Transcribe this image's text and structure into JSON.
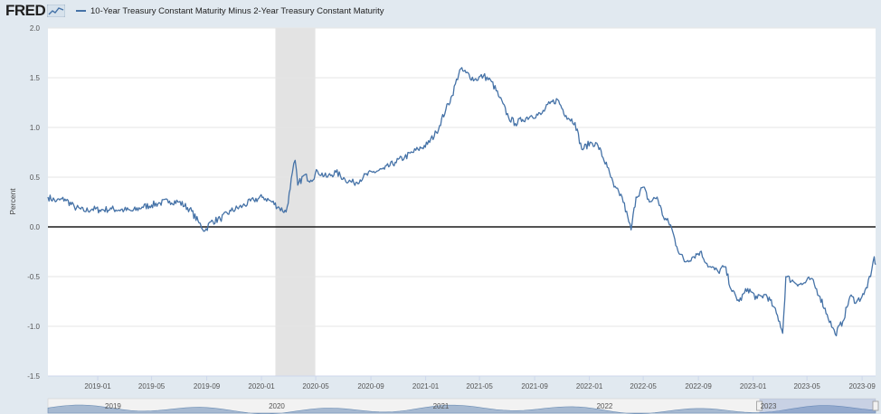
{
  "header": {
    "logo_text": "FRED",
    "legend_label": "10-Year Treasury Constant Maturity Minus 2-Year Treasury Constant Maturity"
  },
  "colors": {
    "series": "#4572a7",
    "recession": "#e3e3e3",
    "zero_line": "#1a1a1a"
  },
  "chart_data": {
    "type": "line",
    "title": "",
    "xlabel": "",
    "ylabel": "Percent",
    "ylim": [
      -1.5,
      2.0
    ],
    "xlim": [
      "2018-09-12",
      "2023-10-01"
    ],
    "yticks": [
      -1.5,
      -1.0,
      -0.5,
      0.0,
      0.5,
      1.0,
      1.5,
      2.0
    ],
    "ytick_labels": [
      "-1.5",
      "-1.0",
      "-0.5",
      "0.0",
      "0.5",
      "1.0",
      "1.5",
      "2.0"
    ],
    "xticks": [
      "2019-01",
      "2019-05",
      "2019-09",
      "2020-01",
      "2020-05",
      "2020-09",
      "2021-01",
      "2021-05",
      "2021-09",
      "2022-01",
      "2022-05",
      "2022-09",
      "2023-01",
      "2023-05",
      "2023-09"
    ],
    "recession": [
      "2020-02-01",
      "2020-04-30"
    ],
    "zero_line": 0,
    "series": [
      {
        "name": "10-Year Treasury Constant Maturity Minus 2-Year Treasury Constant Maturity",
        "points": [
          [
            "2018-09-12",
            0.3
          ],
          [
            "2018-10-01",
            0.26
          ],
          [
            "2018-10-20",
            0.28
          ],
          [
            "2018-11-10",
            0.2
          ],
          [
            "2018-12-01",
            0.16
          ],
          [
            "2018-12-20",
            0.18
          ],
          [
            "2019-01-05",
            0.17
          ],
          [
            "2019-02-01",
            0.18
          ],
          [
            "2019-03-01",
            0.17
          ],
          [
            "2019-03-20",
            0.16
          ],
          [
            "2019-04-10",
            0.2
          ],
          [
            "2019-05-01",
            0.22
          ],
          [
            "2019-05-20",
            0.24
          ],
          [
            "2019-06-10",
            0.26
          ],
          [
            "2019-07-01",
            0.25
          ],
          [
            "2019-07-25",
            0.18
          ],
          [
            "2019-08-15",
            0.04
          ],
          [
            "2019-08-28",
            -0.04
          ],
          [
            "2019-09-10",
            0.05
          ],
          [
            "2019-10-01",
            0.08
          ],
          [
            "2019-10-25",
            0.16
          ],
          [
            "2019-11-20",
            0.21
          ],
          [
            "2019-12-15",
            0.27
          ],
          [
            "2020-01-05",
            0.3
          ],
          [
            "2020-01-25",
            0.25
          ],
          [
            "2020-02-10",
            0.19
          ],
          [
            "2020-02-25",
            0.15
          ],
          [
            "2020-03-05",
            0.38
          ],
          [
            "2020-03-10",
            0.55
          ],
          [
            "2020-03-16",
            0.67
          ],
          [
            "2020-03-22",
            0.42
          ],
          [
            "2020-04-05",
            0.52
          ],
          [
            "2020-04-20",
            0.47
          ],
          [
            "2020-05-05",
            0.56
          ],
          [
            "2020-05-25",
            0.5
          ],
          [
            "2020-06-15",
            0.55
          ],
          [
            "2020-07-05",
            0.48
          ],
          [
            "2020-07-25",
            0.44
          ],
          [
            "2020-08-15",
            0.5
          ],
          [
            "2020-09-05",
            0.55
          ],
          [
            "2020-10-01",
            0.58
          ],
          [
            "2020-10-25",
            0.65
          ],
          [
            "2020-11-15",
            0.7
          ],
          [
            "2020-12-15",
            0.78
          ],
          [
            "2021-01-05",
            0.83
          ],
          [
            "2021-01-25",
            0.95
          ],
          [
            "2021-02-15",
            1.18
          ],
          [
            "2021-03-01",
            1.32
          ],
          [
            "2021-03-18",
            1.58
          ],
          [
            "2021-04-01",
            1.55
          ],
          [
            "2021-04-20",
            1.48
          ],
          [
            "2021-05-10",
            1.52
          ],
          [
            "2021-05-28",
            1.46
          ],
          [
            "2021-06-15",
            1.3
          ],
          [
            "2021-07-05",
            1.1
          ],
          [
            "2021-07-20",
            1.04
          ],
          [
            "2021-08-05",
            1.08
          ],
          [
            "2021-08-25",
            1.12
          ],
          [
            "2021-09-15",
            1.13
          ],
          [
            "2021-10-05",
            1.24
          ],
          [
            "2021-10-22",
            1.28
          ],
          [
            "2021-11-10",
            1.12
          ],
          [
            "2021-11-30",
            1.05
          ],
          [
            "2021-12-15",
            0.78
          ],
          [
            "2022-01-05",
            0.85
          ],
          [
            "2022-01-20",
            0.82
          ],
          [
            "2022-02-10",
            0.6
          ],
          [
            "2022-02-25",
            0.4
          ],
          [
            "2022-03-15",
            0.3
          ],
          [
            "2022-03-30",
            0.05
          ],
          [
            "2022-04-04",
            -0.03
          ],
          [
            "2022-04-15",
            0.3
          ],
          [
            "2022-05-01",
            0.4
          ],
          [
            "2022-05-15",
            0.25
          ],
          [
            "2022-06-01",
            0.3
          ],
          [
            "2022-06-15",
            0.1
          ],
          [
            "2022-07-01",
            0.02
          ],
          [
            "2022-07-15",
            -0.2
          ],
          [
            "2022-08-01",
            -0.35
          ],
          [
            "2022-08-20",
            -0.3
          ],
          [
            "2022-09-05",
            -0.25
          ],
          [
            "2022-09-25",
            -0.4
          ],
          [
            "2022-10-15",
            -0.45
          ],
          [
            "2022-10-30",
            -0.4
          ],
          [
            "2022-11-15",
            -0.65
          ],
          [
            "2022-12-01",
            -0.75
          ],
          [
            "2022-12-20",
            -0.62
          ],
          [
            "2023-01-10",
            -0.72
          ],
          [
            "2023-01-30",
            -0.68
          ],
          [
            "2023-02-15",
            -0.8
          ],
          [
            "2023-03-01",
            -0.95
          ],
          [
            "2023-03-08",
            -1.07
          ],
          [
            "2023-03-15",
            -0.5
          ],
          [
            "2023-04-01",
            -0.55
          ],
          [
            "2023-04-20",
            -0.58
          ],
          [
            "2023-05-10",
            -0.52
          ],
          [
            "2023-05-30",
            -0.7
          ],
          [
            "2023-06-15",
            -0.88
          ],
          [
            "2023-07-03",
            -1.08
          ],
          [
            "2023-07-20",
            -0.95
          ],
          [
            "2023-08-05",
            -0.7
          ],
          [
            "2023-08-20",
            -0.75
          ],
          [
            "2023-09-05",
            -0.68
          ],
          [
            "2023-09-20",
            -0.5
          ],
          [
            "2023-09-28",
            -0.3
          ],
          [
            "2023-10-01",
            -0.38
          ]
        ]
      }
    ]
  },
  "navigator": {
    "labels": [
      "2019",
      "2020",
      "2021",
      "2022",
      "2023"
    ],
    "selection_start": "2023-01-15",
    "selection_end": "2023-10-01"
  }
}
